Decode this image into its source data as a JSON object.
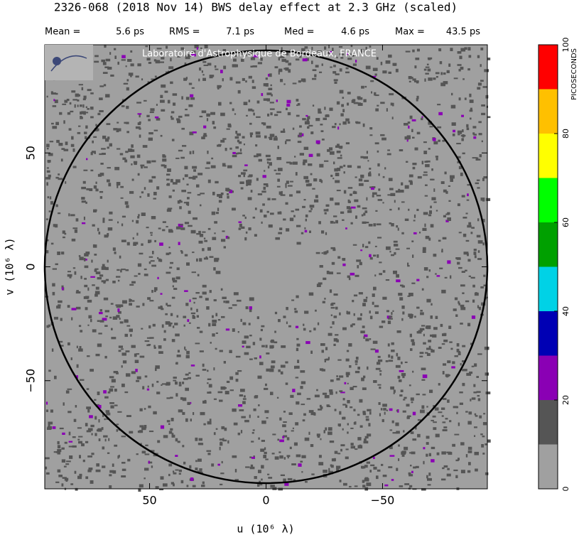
{
  "chart_data": {
    "type": "uvmap",
    "title": "2326-068  (2018 Nov 14)   BWS delay effect at  2.3 GHz (scaled)",
    "stats": [
      {
        "label": "Mean =",
        "value": "5.6 ps"
      },
      {
        "label": "RMS =",
        "value": "7.1 ps"
      },
      {
        "label": "Med =",
        "value": "4.6 ps"
      },
      {
        "label": "Max =",
        "value": "43.5 ps"
      }
    ],
    "credit": "Laboratoire d'Astrophysique de Bordeaux, FRANCE",
    "xlabel": "u  (10⁶ λ)",
    "ylabel": "v  (10⁶ λ)",
    "xlim": [
      95,
      -95
    ],
    "ylim": [
      -97.5,
      97.5
    ],
    "xticks": [
      50,
      0,
      {
        "value": -50,
        "label": "−50"
      }
    ],
    "yticks": [
      {
        "value": -50,
        "label": "−50"
      },
      0,
      50
    ],
    "circle_radius": 95,
    "colorbar": {
      "label": "PICOSECONDS",
      "lim": [
        0,
        100
      ],
      "ticks": [
        0,
        20,
        40,
        60,
        80,
        100
      ],
      "colors": [
        "#a0a0a0",
        "#555555",
        "#8a00b4",
        "#0000b4",
        "#00d2e6",
        "#00a000",
        "#00ff00",
        "#ffff00",
        "#ffc000",
        "#ff0000"
      ]
    }
  }
}
